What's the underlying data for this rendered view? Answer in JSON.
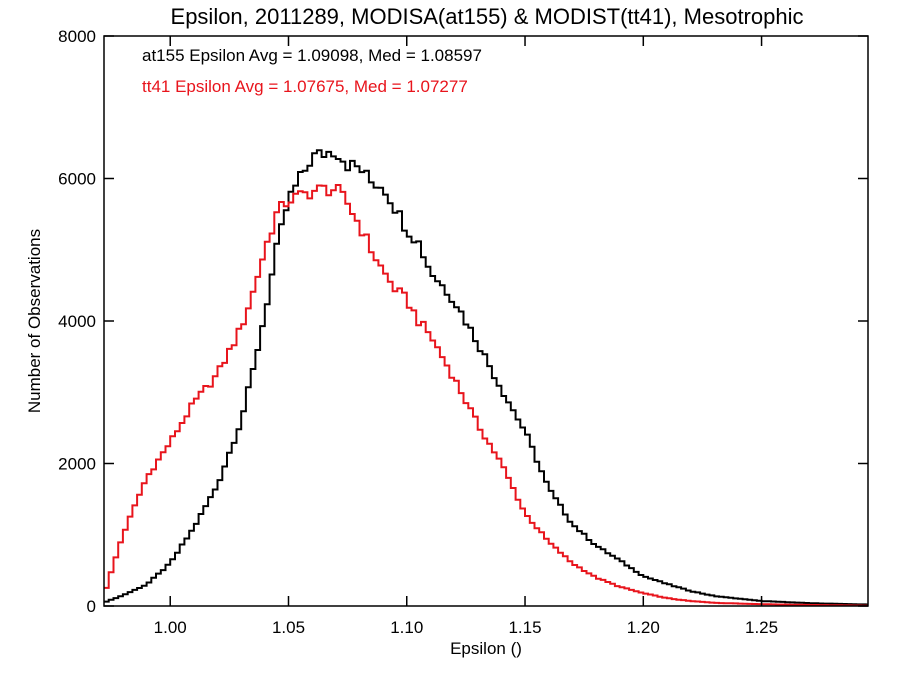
{
  "chart_data": {
    "type": "line",
    "style": "step histogram",
    "title": "Epsilon, 2011289, MODISA(at155) & MODIST(tt41), Mesotrophic",
    "xlabel": "Epsilon ()",
    "ylabel": "Number of Observations",
    "xlim": [
      0.972,
      1.295
    ],
    "ylim": [
      0,
      8000
    ],
    "x_ticks": [
      1.0,
      1.05,
      1.1,
      1.15,
      1.2,
      1.25
    ],
    "x_tick_labels": [
      "1.00",
      "1.05",
      "1.10",
      "1.15",
      "1.20",
      "1.25"
    ],
    "y_ticks": [
      0,
      2000,
      4000,
      6000,
      8000
    ],
    "y_tick_labels": [
      "0",
      "2000",
      "4000",
      "6000",
      "8000"
    ],
    "grid": false,
    "annotations": [
      {
        "text": "at155 Epsilon Avg = 1.09098, Med = 1.08597",
        "color": "#000000"
      },
      {
        "text": "tt41 Epsilon Avg = 1.07675, Med = 1.07277",
        "color": "#e8141c"
      }
    ],
    "x": [
      0.972,
      0.98,
      0.99,
      1.0,
      1.01,
      1.02,
      1.03,
      1.035,
      1.04,
      1.045,
      1.05,
      1.055,
      1.06,
      1.065,
      1.07,
      1.075,
      1.08,
      1.085,
      1.09,
      1.095,
      1.1,
      1.105,
      1.11,
      1.12,
      1.13,
      1.14,
      1.15,
      1.16,
      1.17,
      1.18,
      1.19,
      1.2,
      1.21,
      1.22,
      1.23,
      1.25,
      1.27,
      1.295
    ],
    "series": [
      {
        "name": "at155",
        "color": "#000000",
        "values": [
          50,
          150,
          300,
          600,
          1100,
          1700,
          2600,
          3300,
          4100,
          5000,
          5700,
          6000,
          6300,
          6350,
          6400,
          6200,
          6150,
          5950,
          5900,
          5600,
          5300,
          5100,
          4700,
          4300,
          3700,
          3050,
          2450,
          1650,
          1150,
          850,
          640,
          420,
          310,
          210,
          140,
          70,
          40,
          20
        ]
      },
      {
        "name": "tt41",
        "color": "#e8141c",
        "values": [
          150,
          1000,
          1800,
          2300,
          2850,
          3250,
          3900,
          4400,
          5000,
          5500,
          5700,
          5750,
          5820,
          5850,
          5850,
          5650,
          5350,
          5000,
          4700,
          4450,
          4300,
          4000,
          3800,
          3200,
          2550,
          2000,
          1300,
          900,
          600,
          400,
          270,
          180,
          110,
          70,
          45,
          25,
          15,
          5
        ]
      }
    ]
  }
}
